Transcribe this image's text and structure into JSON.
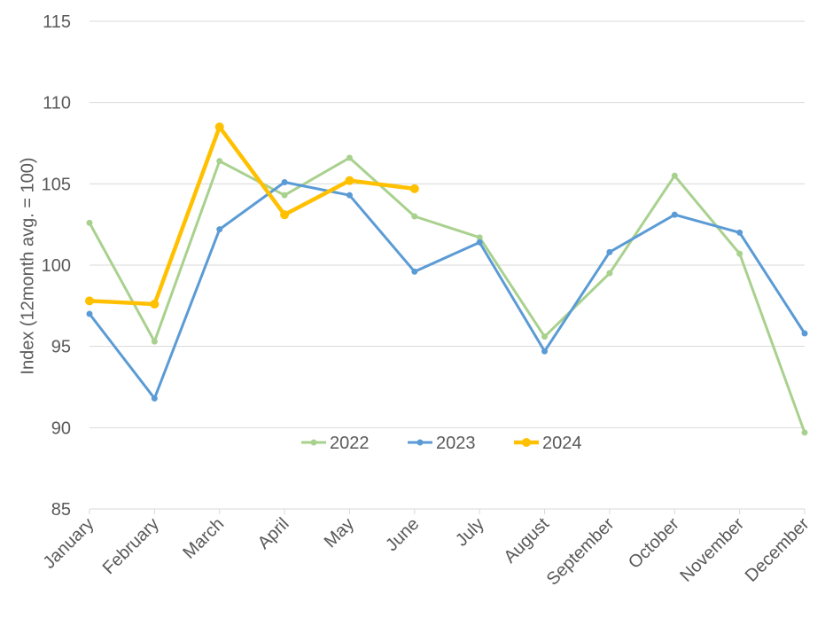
{
  "chart_data": {
    "type": "line",
    "y_label": "Index (12month avg. = 100)",
    "categories": [
      "January",
      "February",
      "March",
      "April",
      "May",
      "June",
      "July",
      "August",
      "September",
      "October",
      "November",
      "December"
    ],
    "series": [
      {
        "name": "2022",
        "color": "#a9d18e",
        "values": [
          102.6,
          95.3,
          106.4,
          104.3,
          106.6,
          103.0,
          101.7,
          95.6,
          99.5,
          105.5,
          100.7,
          89.7
        ]
      },
      {
        "name": "2023",
        "color": "#5b9bd5",
        "values": [
          97.0,
          91.8,
          102.2,
          105.1,
          104.3,
          99.6,
          101.4,
          94.7,
          100.8,
          103.1,
          102.0,
          95.8
        ]
      },
      {
        "name": "2024",
        "color": "#ffc000",
        "values": [
          97.8,
          97.6,
          108.5,
          103.1,
          105.2,
          104.7,
          null,
          null,
          null,
          null,
          null,
          null
        ]
      }
    ],
    "ylim": [
      85,
      115
    ],
    "yticks": [
      85,
      90,
      95,
      100,
      105,
      110,
      115
    ],
    "grid": true,
    "legend": "center"
  }
}
